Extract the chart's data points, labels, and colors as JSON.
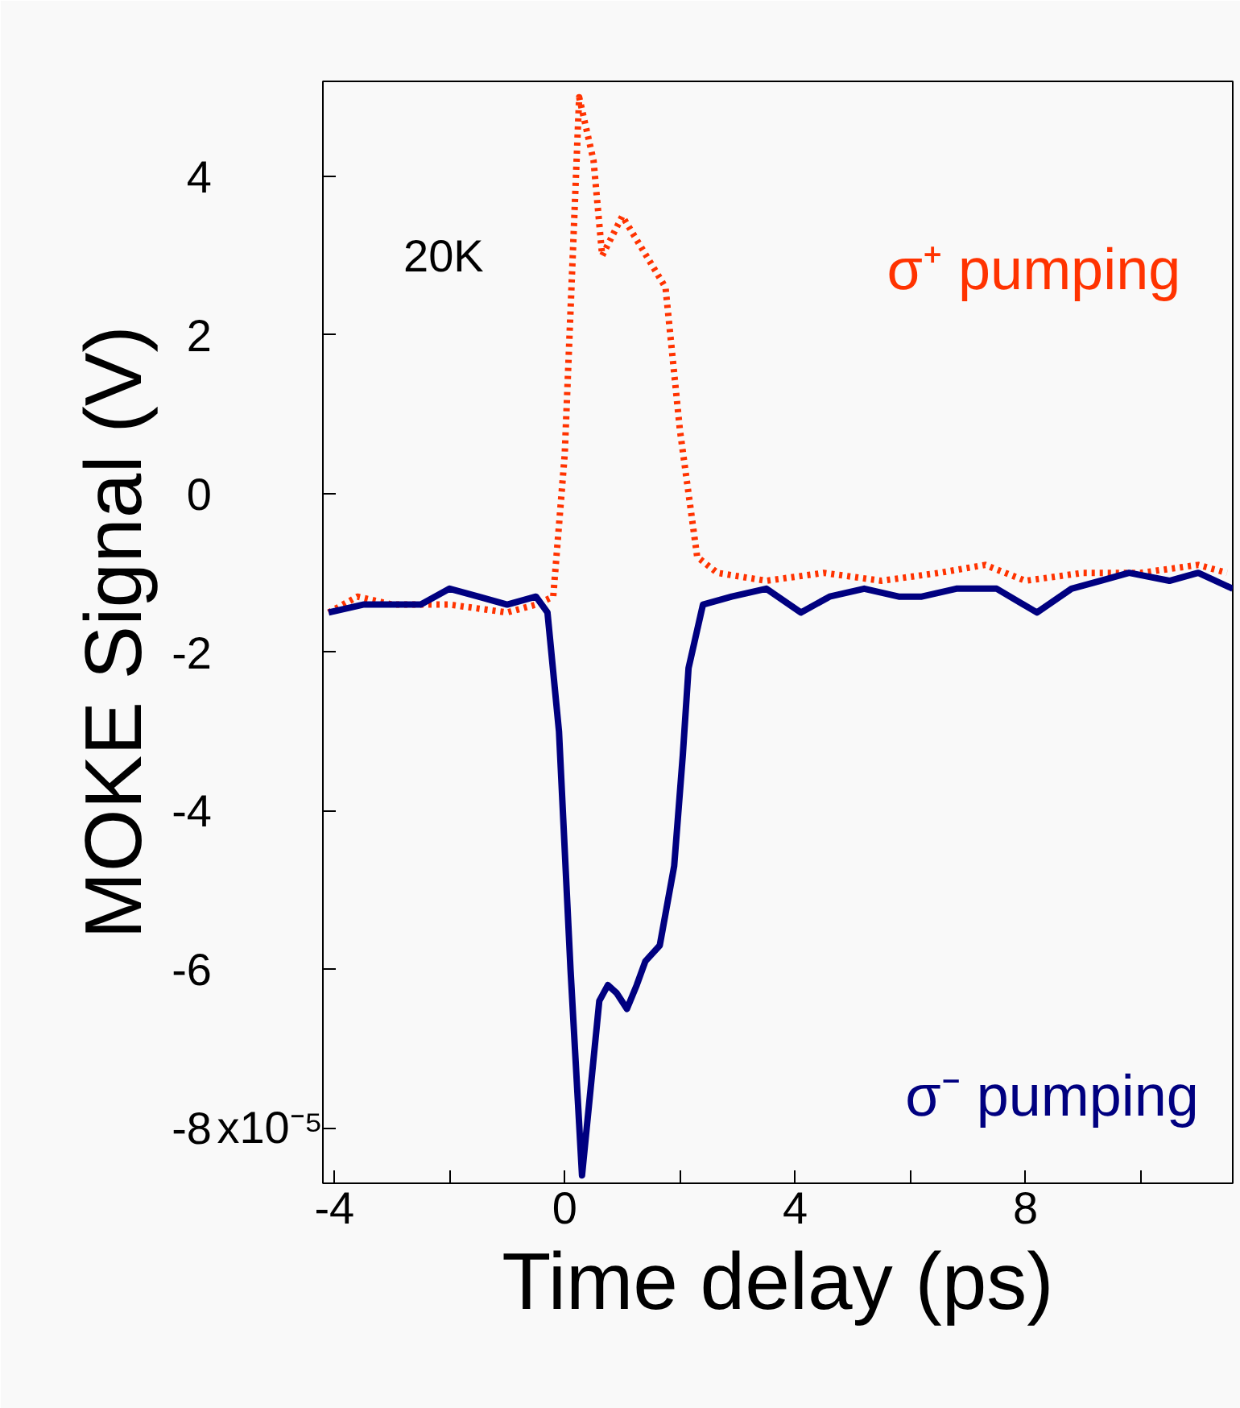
{
  "chart_data": {
    "type": "line",
    "xlabel": "Time delay (ps)",
    "ylabel": "MOKE Signal (V)",
    "annotations": [
      "20K",
      "x10⁻⁵"
    ],
    "xlim": [
      -4.2,
      11.6
    ],
    "ylim": [
      -8.7,
      5.2
    ],
    "xticks": [
      -4,
      {
        "value": -2,
        "label": null
      },
      0,
      {
        "value": 2,
        "label": null
      },
      4,
      {
        "value": 6,
        "label": null
      },
      8,
      {
        "value": 10,
        "label": null
      }
    ],
    "yticks": [
      4,
      2,
      0,
      -2,
      -4,
      -6,
      -8
    ],
    "grid": false,
    "legend": false,
    "series": [
      {
        "name": "σ⁺ pumping",
        "color": "#ff3300",
        "line_style": "dotted",
        "x": [
          -4.1,
          -3.6,
          -3.0,
          -2.0,
          -1.0,
          -0.5,
          -0.2,
          0.0,
          0.25,
          0.5,
          0.65,
          1.0,
          1.25,
          1.5,
          1.75,
          2.0,
          2.3,
          2.65,
          3.5,
          4.5,
          5.5,
          6.5,
          7.3,
          8.0,
          9.0,
          10.0,
          11.0,
          11.5
        ],
        "values": [
          -1.5,
          -1.3,
          -1.4,
          -1.4,
          -1.5,
          -1.4,
          -1.3,
          0.5,
          5.0,
          4.2,
          3.0,
          3.5,
          3.2,
          2.9,
          2.6,
          0.8,
          -0.8,
          -1.0,
          -1.1,
          -1.0,
          -1.1,
          -1.0,
          -0.9,
          -1.1,
          -1.0,
          -1.0,
          -0.9,
          -1.0
        ]
      },
      {
        "name": "σ⁻ pumping",
        "color": "#000080",
        "line_style": "solid",
        "x": [
          -4.1,
          -3.5,
          -3.0,
          -2.5,
          -2.0,
          -1.5,
          -1.0,
          -0.5,
          -0.3,
          -0.1,
          0.1,
          0.3,
          0.45,
          0.6,
          0.75,
          0.9,
          1.08,
          1.25,
          1.4,
          1.65,
          1.9,
          2.05,
          2.15,
          2.4,
          2.9,
          3.5,
          4.1,
          4.6,
          5.2,
          5.8,
          6.2,
          6.8,
          7.5,
          8.2,
          8.8,
          9.3,
          9.8,
          10.5,
          11.0,
          11.6
        ],
        "values": [
          -1.5,
          -1.4,
          -1.4,
          -1.4,
          -1.2,
          -1.3,
          -1.4,
          -1.3,
          -1.5,
          -3.0,
          -6.0,
          -8.6,
          -7.5,
          -6.4,
          -6.2,
          -6.3,
          -6.5,
          -6.2,
          -5.9,
          -5.7,
          -4.7,
          -3.3,
          -2.2,
          -1.4,
          -1.3,
          -1.2,
          -1.5,
          -1.3,
          -1.2,
          -1.3,
          -1.3,
          -1.2,
          -1.2,
          -1.5,
          -1.2,
          -1.1,
          -1.0,
          -1.1,
          -1.0,
          -1.2
        ]
      }
    ]
  }
}
